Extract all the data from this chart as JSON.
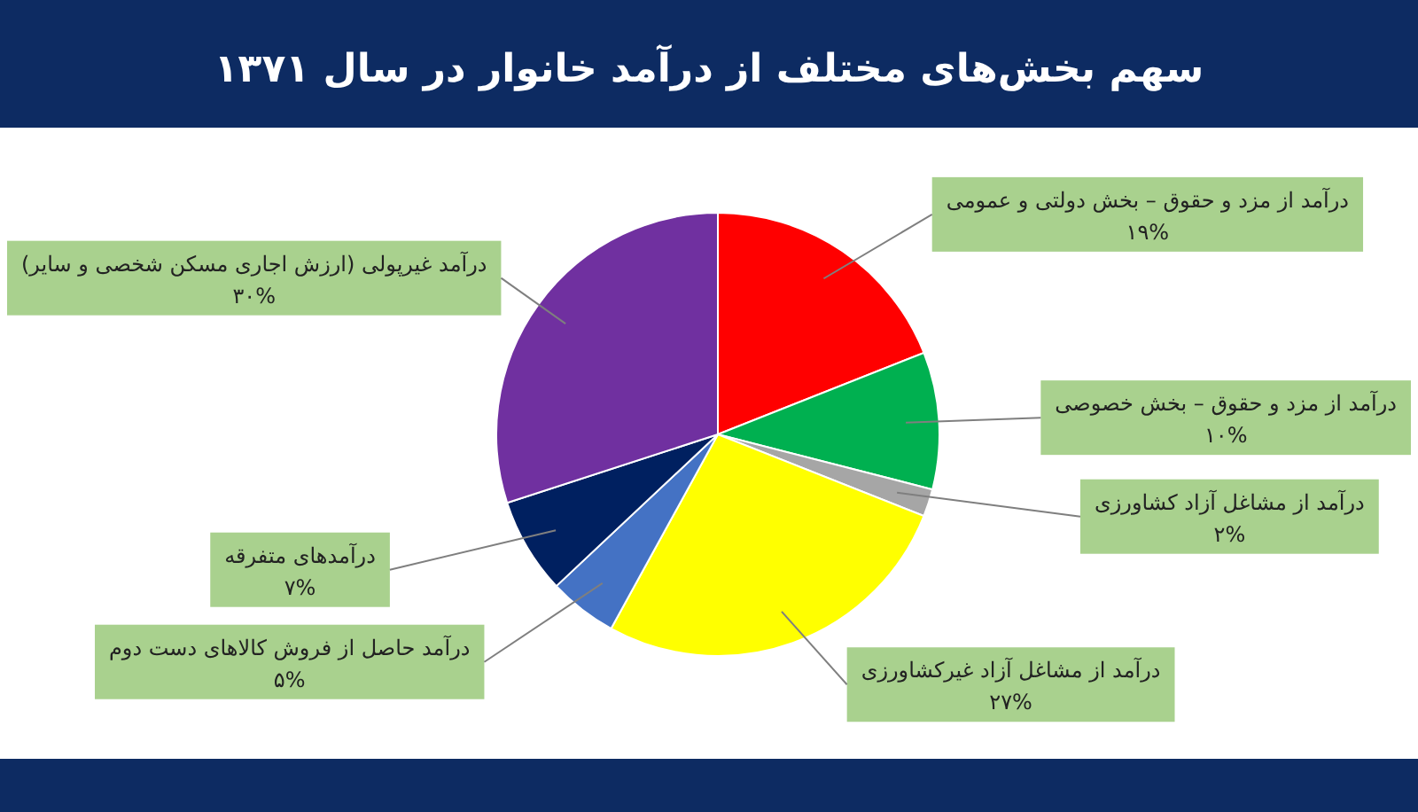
{
  "chart_data": {
    "type": "pie",
    "title": "سهم بخش‌های مختلف از درآمد خانوار در سال ۱۳۷۱",
    "categories": [
      "درآمد از مزد و حقوق – بخش دولتی و عمومی",
      "درآمد از مزد و حقوق – بخش خصوصی",
      "درآمد از مشاغل آزاد کشاورزی",
      "درآمد از مشاغل آزاد غیرکشاورزی",
      "درآمد حاصل از فروش کالاهای دست دوم",
      "درآمدهای متفرقه",
      "درآمد غیرپولی (ارزش اجاری مسکن شخصی و سایر)"
    ],
    "values": [
      19,
      10,
      2,
      27,
      5,
      7,
      30
    ],
    "value_labels": [
      "۱۹%",
      "۱۰%",
      "۲%",
      "۲۷%",
      "۵%",
      "۷%",
      "۳۰%"
    ],
    "colors": [
      "#ff0000",
      "#00b050",
      "#a6a6a6",
      "#ffff00",
      "#4472c4",
      "#002060",
      "#7030a0"
    ]
  }
}
